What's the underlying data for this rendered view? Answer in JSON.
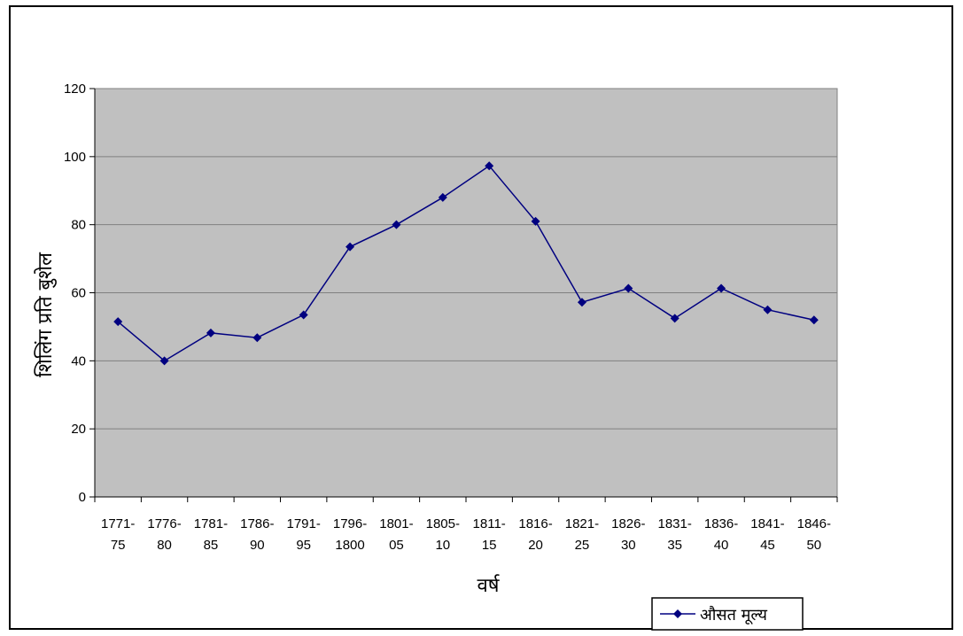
{
  "chart_data": {
    "type": "line",
    "title": "",
    "xlabel": "वर्ष",
    "ylabel": "शिलिंग प्रति बुशेल",
    "ylim": [
      0,
      120
    ],
    "yticks": [
      0,
      20,
      40,
      60,
      80,
      100,
      120
    ],
    "grid": true,
    "legend_position": "bottom-right",
    "colors": {
      "plot_bg": "#c0c0c0",
      "series": "#000080",
      "grid": "#808080"
    },
    "categories": [
      [
        "1771-",
        "75"
      ],
      [
        "1776-",
        "80"
      ],
      [
        "1781-",
        "85"
      ],
      [
        "1786-",
        "90"
      ],
      [
        "1791-",
        "95"
      ],
      [
        "1796-",
        "1800"
      ],
      [
        "1801-",
        "05"
      ],
      [
        "1805-",
        "10"
      ],
      [
        "1811-",
        "15"
      ],
      [
        "1816-",
        "20"
      ],
      [
        "1821-",
        "25"
      ],
      [
        "1826-",
        "30"
      ],
      [
        "1831-",
        "35"
      ],
      [
        "1836-",
        "40"
      ],
      [
        "1841-",
        "45"
      ],
      [
        "1846-",
        "50"
      ]
    ],
    "series": [
      {
        "name": "औसत मूल्य",
        "values": [
          51.5,
          40,
          48.2,
          46.8,
          53.5,
          73.5,
          80,
          88,
          97.3,
          81,
          57.2,
          61.3,
          52.5,
          61.3,
          55,
          52
        ]
      }
    ]
  }
}
